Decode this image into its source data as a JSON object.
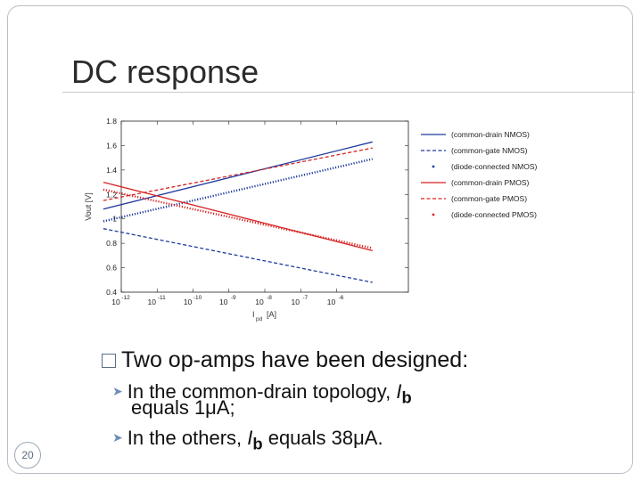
{
  "slide": {
    "title": "DC response",
    "page_number": "20",
    "bullet": "Two op-amps have been designed:",
    "sub_items": [
      {
        "prefix": "In the common-drain topology, ",
        "var": "I",
        "sub": "b",
        "line2": "equals 1μA;"
      },
      {
        "prefix": "In the others, ",
        "var": "I",
        "sub": "b",
        "suffix": " equals 38μA."
      }
    ]
  },
  "chart_data": {
    "type": "line",
    "ylabel": "Vout [V]",
    "xlabel_main": "I",
    "xlabel_sub": "pd",
    "xlabel_unit": "[A]",
    "x_scale": "log",
    "xlim": [
      1e-12,
      0.0001
    ],
    "ylim": [
      0.4,
      1.8
    ],
    "y_ticks": [
      0.4,
      0.6,
      0.8,
      1,
      1.2,
      1.4,
      1.6,
      1.8
    ],
    "x_ticks": [
      {
        "exp": -12,
        "base": "10",
        "label": "-12"
      },
      {
        "exp": -11,
        "base": "10",
        "label": "-11"
      },
      {
        "exp": -10,
        "base": "10",
        "label": "-10"
      },
      {
        "exp": -9,
        "base": "10",
        "label": "-9"
      },
      {
        "exp": -8,
        "base": "10",
        "label": "-8"
      },
      {
        "exp": -7,
        "base": "10",
        "label": "-7"
      },
      {
        "exp": -6,
        "base": "10",
        "label": "-6"
      }
    ],
    "legend_position": "right",
    "series": [
      {
        "name": "(common-drain NMOS)",
        "color": "#1f3a9c",
        "style": "solid",
        "x": [
          -12.5,
          -5.0
        ],
        "y": [
          1.08,
          1.63
        ]
      },
      {
        "name": "(common-gate NMOS)",
        "color": "#1f3a9c",
        "style": "dashed",
        "x": [
          -12.5,
          -5.0
        ],
        "y": [
          0.92,
          0.48
        ]
      },
      {
        "name": "(diode-connected NMOS)",
        "color": "#1f3a9c",
        "style": "dotted",
        "x": [
          -12.5,
          -5.0
        ],
        "y": [
          0.98,
          1.49
        ]
      },
      {
        "name": "(common-drain PMOS)",
        "color": "#d62424",
        "style": "solid",
        "x": [
          -12.5,
          -5.0
        ],
        "y": [
          1.3,
          0.74
        ]
      },
      {
        "name": "(common-gate PMOS)",
        "color": "#d62424",
        "style": "dashed",
        "x": [
          -12.5,
          -5.0
        ],
        "y": [
          1.15,
          1.58
        ]
      },
      {
        "name": "(diode-connected PMOS)",
        "color": "#d62424",
        "style": "dotted",
        "x": [
          -12.5,
          -5.0
        ],
        "y": [
          1.24,
          0.76
        ]
      }
    ]
  }
}
